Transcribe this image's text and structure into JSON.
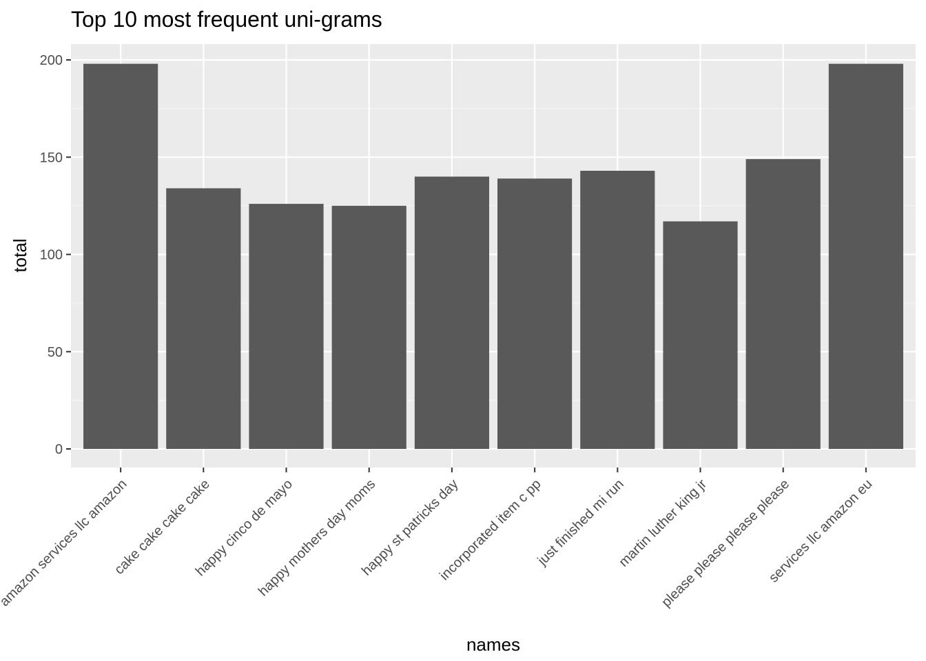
{
  "chart_data": {
    "type": "bar",
    "title": "Top 10 most frequent uni-grams",
    "xlabel": "names",
    "ylabel": "total",
    "categories": [
      "amazon services llc amazon",
      "cake cake cake cake",
      "happy cinco de mayo",
      "happy mothers day moms",
      "happy st patricks day",
      "incorporated item c pp",
      "just finished mi run",
      "martin luther king jr",
      "please please please please",
      "services llc amazon eu"
    ],
    "values": [
      198,
      134,
      126,
      125,
      140,
      139,
      143,
      117,
      149,
      198
    ],
    "ylim": [
      0,
      208
    ],
    "yticks": [
      0,
      50,
      100,
      150,
      200
    ],
    "grid": true,
    "legend": "none",
    "colors": {
      "bar": "#595959",
      "panel": "#ebebeb",
      "grid_major": "#ffffff",
      "grid_minor": "#f5f5f5",
      "tick_text": "#4d4d4d",
      "tick_mark": "#333333"
    }
  }
}
